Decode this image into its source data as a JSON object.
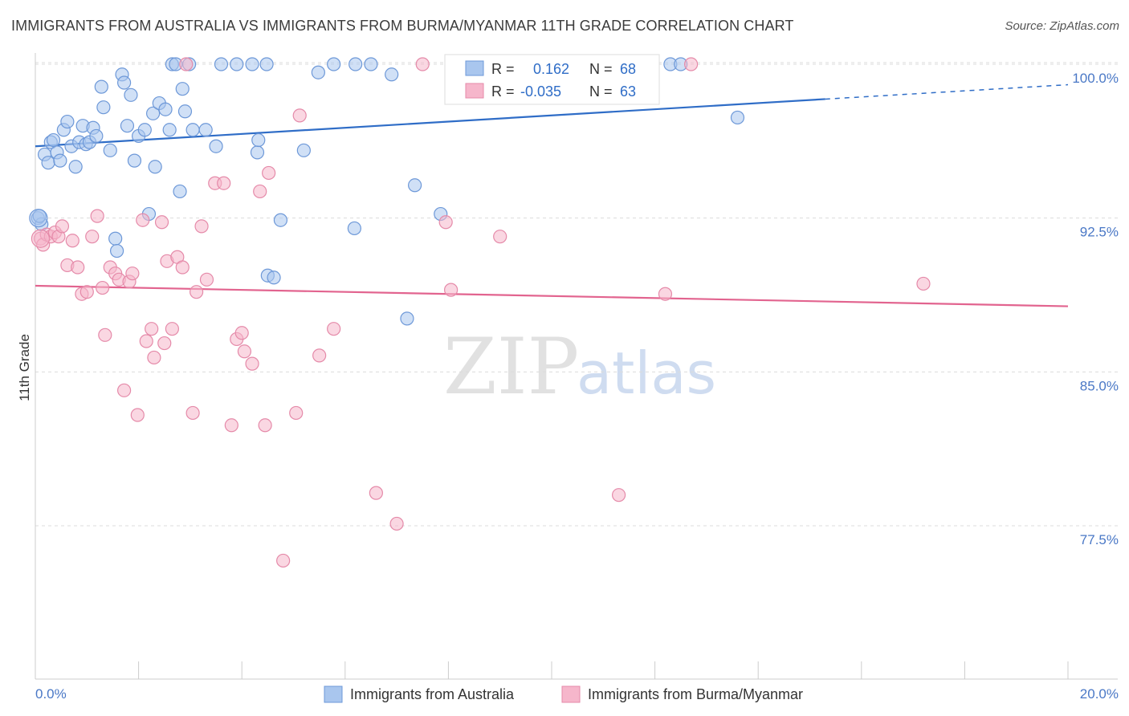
{
  "header": {
    "title": "IMMIGRANTS FROM AUSTRALIA VS IMMIGRANTS FROM BURMA/MYANMAR 11TH GRADE CORRELATION CHART",
    "source": "Source: ZipAtlas.com"
  },
  "watermark": {
    "zip": "ZIP",
    "atlas": "atlas"
  },
  "colors": {
    "blue_fill": "#a9c6ee",
    "blue_stroke": "#6d98d8",
    "blue_line": "#2f6dc7",
    "pink_fill": "#f6b6cb",
    "pink_stroke": "#e58aa9",
    "pink_line": "#e2648f",
    "axis_label": "#4a78c6",
    "grid": "#dcdcdc"
  },
  "legend": {
    "rows": [
      {
        "r_label": "R =",
        "r_value": "0.162",
        "n_label": "N =",
        "n_value": "68"
      },
      {
        "r_label": "R =",
        "r_value": "-0.035",
        "n_label": "N =",
        "n_value": "63"
      }
    ]
  },
  "chart_data": {
    "type": "scatter",
    "title": "IMMIGRANTS FROM AUSTRALIA VS IMMIGRANTS FROM BURMA/MYANMAR 11TH GRADE CORRELATION CHART",
    "xlabel": "",
    "ylabel": "11th Grade",
    "xlim": [
      0,
      20
    ],
    "ylim": [
      70,
      100.8
    ],
    "x_tick_labels": [
      "0.0%",
      "20.0%"
    ],
    "y_ticks": [
      77.5,
      85.0,
      92.5,
      100.0
    ],
    "y_tick_labels": [
      "77.5%",
      "85.0%",
      "92.5%",
      "100.0%"
    ],
    "grid": true,
    "legend_position": "top-center",
    "series": [
      {
        "name": "Immigrants from Australia",
        "color": "#a9c6ee",
        "trend": {
          "x0": 0,
          "y0": 96.0,
          "x1": 15.3,
          "y1": 98.3,
          "dash_to_x": 20,
          "dash_to_y": 99.0
        },
        "points": [
          [
            0.05,
            92.5
          ],
          [
            0.12,
            92.2
          ],
          [
            0.18,
            95.6
          ],
          [
            0.25,
            95.2
          ],
          [
            0.3,
            96.2
          ],
          [
            0.35,
            96.3
          ],
          [
            0.42,
            95.7
          ],
          [
            0.48,
            95.3
          ],
          [
            0.55,
            96.8
          ],
          [
            0.62,
            97.2
          ],
          [
            0.7,
            96.0
          ],
          [
            0.78,
            95.0
          ],
          [
            0.85,
            96.2
          ],
          [
            0.92,
            97.0
          ],
          [
            0.98,
            96.1
          ],
          [
            1.05,
            96.2
          ],
          [
            1.12,
            96.9
          ],
          [
            1.18,
            96.5
          ],
          [
            1.28,
            98.9
          ],
          [
            1.32,
            97.9
          ],
          [
            1.45,
            95.8
          ],
          [
            1.55,
            91.5
          ],
          [
            1.58,
            90.9
          ],
          [
            1.68,
            99.5
          ],
          [
            1.72,
            99.1
          ],
          [
            1.78,
            97.0
          ],
          [
            1.85,
            98.5
          ],
          [
            1.92,
            95.3
          ],
          [
            2.0,
            96.5
          ],
          [
            2.12,
            96.8
          ],
          [
            2.2,
            92.7
          ],
          [
            2.28,
            97.6
          ],
          [
            2.32,
            95.0
          ],
          [
            2.4,
            98.1
          ],
          [
            2.52,
            97.8
          ],
          [
            2.6,
            96.8
          ],
          [
            2.65,
            100.0
          ],
          [
            2.72,
            100.0
          ],
          [
            2.8,
            93.8
          ],
          [
            2.85,
            98.8
          ],
          [
            2.9,
            97.7
          ],
          [
            2.98,
            100.0
          ],
          [
            3.05,
            96.8
          ],
          [
            3.3,
            96.8
          ],
          [
            3.5,
            96.0
          ],
          [
            3.6,
            100.0
          ],
          [
            3.9,
            100.0
          ],
          [
            4.2,
            100.0
          ],
          [
            4.3,
            95.7
          ],
          [
            4.32,
            96.3
          ],
          [
            4.48,
            100.0
          ],
          [
            4.5,
            89.7
          ],
          [
            4.62,
            89.6
          ],
          [
            4.75,
            92.4
          ],
          [
            5.2,
            95.8
          ],
          [
            5.48,
            99.6
          ],
          [
            5.78,
            100.0
          ],
          [
            6.2,
            100.0
          ],
          [
            6.18,
            92.0
          ],
          [
            6.5,
            100.0
          ],
          [
            6.9,
            99.5
          ],
          [
            7.2,
            87.6
          ],
          [
            7.35,
            94.1
          ],
          [
            7.85,
            92.7
          ],
          [
            12.3,
            100.0
          ],
          [
            12.5,
            100.0
          ],
          [
            13.6,
            97.4
          ],
          [
            0.08,
            92.6
          ]
        ]
      },
      {
        "name": "Immigrants from Burma/Myanmar",
        "color": "#f6b6cb",
        "trend": {
          "x0": 0,
          "y0": 89.2,
          "x1": 20,
          "y1": 88.2
        },
        "points": [
          [
            0.1,
            91.5
          ],
          [
            0.15,
            91.2
          ],
          [
            0.22,
            91.7
          ],
          [
            0.3,
            91.6
          ],
          [
            0.38,
            91.8
          ],
          [
            0.45,
            91.6
          ],
          [
            0.52,
            92.1
          ],
          [
            0.62,
            90.2
          ],
          [
            0.72,
            91.4
          ],
          [
            0.82,
            90.1
          ],
          [
            0.9,
            88.8
          ],
          [
            1.0,
            88.9
          ],
          [
            1.1,
            91.6
          ],
          [
            1.2,
            92.6
          ],
          [
            1.3,
            89.1
          ],
          [
            1.35,
            86.8
          ],
          [
            1.45,
            90.1
          ],
          [
            1.55,
            89.8
          ],
          [
            1.62,
            89.5
          ],
          [
            1.72,
            84.1
          ],
          [
            1.82,
            89.4
          ],
          [
            1.88,
            89.8
          ],
          [
            1.98,
            82.9
          ],
          [
            2.08,
            92.4
          ],
          [
            2.15,
            86.5
          ],
          [
            2.25,
            87.1
          ],
          [
            2.3,
            85.7
          ],
          [
            2.45,
            92.3
          ],
          [
            2.5,
            86.4
          ],
          [
            2.55,
            90.4
          ],
          [
            2.65,
            87.1
          ],
          [
            2.75,
            90.6
          ],
          [
            2.85,
            90.1
          ],
          [
            2.92,
            100.0
          ],
          [
            3.05,
            83.0
          ],
          [
            3.12,
            88.9
          ],
          [
            3.22,
            92.1
          ],
          [
            3.32,
            89.5
          ],
          [
            3.48,
            94.2
          ],
          [
            3.65,
            94.2
          ],
          [
            3.8,
            82.4
          ],
          [
            3.9,
            86.6
          ],
          [
            4.0,
            86.9
          ],
          [
            4.05,
            86.0
          ],
          [
            4.2,
            85.4
          ],
          [
            4.35,
            93.8
          ],
          [
            4.45,
            82.4
          ],
          [
            4.52,
            94.7
          ],
          [
            5.05,
            83.0
          ],
          [
            5.12,
            97.5
          ],
          [
            5.5,
            85.8
          ],
          [
            5.78,
            87.1
          ],
          [
            6.6,
            79.1
          ],
          [
            7.0,
            77.6
          ],
          [
            7.5,
            100.0
          ],
          [
            7.95,
            92.3
          ],
          [
            8.05,
            89.0
          ],
          [
            9.0,
            91.6
          ],
          [
            11.3,
            79.0
          ],
          [
            12.2,
            88.8
          ],
          [
            12.7,
            100.0
          ],
          [
            17.2,
            89.3
          ],
          [
            4.8,
            75.8
          ]
        ]
      }
    ]
  },
  "bottom_legend": {
    "items": [
      {
        "label": "Immigrants from Australia"
      },
      {
        "label": "Immigrants from Burma/Myanmar"
      }
    ]
  }
}
